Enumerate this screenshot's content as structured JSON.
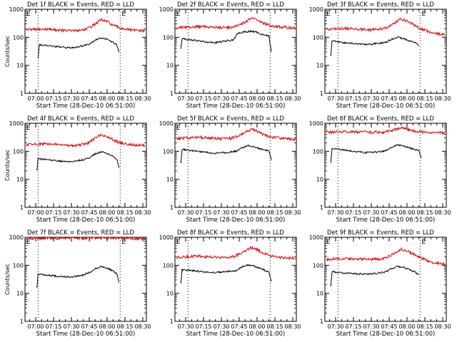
{
  "chart_data": [
    {
      "type": "line",
      "title": "Det 1f BLACK = Events, RED = LLD",
      "xlabel": "Start Time (28-Dec-10 06:51:00)",
      "ylabel": "Counts/sec",
      "x_ticks": [
        "07:00",
        "07:15",
        "07:30",
        "07:45",
        "08:00",
        "08:15",
        "08:30"
      ],
      "xlim": [
        "06:51",
        "08:33"
      ],
      "y_log": true,
      "ylim": [
        1,
        1000
      ],
      "y_ticks": [
        "1",
        "10",
        "100",
        "1000"
      ],
      "dotted_lines": [
        "07:02",
        "08:11"
      ],
      "marker_labels": [
        "E",
        "E"
      ],
      "series": [
        {
          "color": "#000000",
          "x": [
            "07:02",
            "07:03",
            "07:10",
            "07:20",
            "07:30",
            "07:40",
            "07:45",
            "07:50",
            "07:55",
            "08:00",
            "08:05",
            "08:08",
            "08:10"
          ],
          "y": [
            18,
            55,
            50,
            45,
            42,
            50,
            58,
            80,
            95,
            85,
            65,
            55,
            28
          ]
        },
        {
          "color": "#dd0000",
          "x": [
            "06:52",
            "07:00",
            "07:10",
            "07:20",
            "07:30",
            "07:40",
            "07:45",
            "07:50",
            "07:55",
            "08:00",
            "08:05",
            "08:10",
            "08:20",
            "08:32"
          ],
          "y": [
            180,
            190,
            195,
            180,
            170,
            185,
            220,
            300,
            420,
            360,
            270,
            220,
            180,
            170
          ]
        }
      ]
    },
    {
      "type": "line",
      "title": "Det 2f BLACK = Events, RED = LLD",
      "xlabel": "Start Time (28-Dec-10 06:51:00)",
      "ylabel": "",
      "x_ticks": [
        "07:30",
        "07:15",
        "07:30",
        "07:45",
        "08:00",
        "08:15",
        "08:30"
      ],
      "xlim": [
        "06:51",
        "08:33"
      ],
      "y_log": true,
      "ylim": [
        1,
        1000
      ],
      "y_ticks": [
        "1",
        "10",
        "100",
        "1000"
      ],
      "dotted_lines": [
        "07:02",
        "08:11"
      ],
      "marker_labels": [
        "E"
      ],
      "series": [
        {
          "color": "#000000",
          "x": [
            "06:56",
            "06:57",
            "07:05",
            "07:15",
            "07:25",
            "07:35",
            "07:40",
            "07:44",
            "07:50",
            "07:55",
            "08:00",
            "08:05",
            "08:10",
            "08:12"
          ],
          "y": [
            40,
            90,
            80,
            70,
            65,
            75,
            80,
            140,
            155,
            165,
            150,
            125,
            110,
            30
          ]
        },
        {
          "color": "#dd0000",
          "x": [
            "06:52",
            "07:00",
            "07:10",
            "07:20",
            "07:30",
            "07:40",
            "07:45",
            "07:50",
            "07:55",
            "08:00",
            "08:05",
            "08:10",
            "08:20",
            "08:32"
          ],
          "y": [
            220,
            230,
            240,
            235,
            220,
            230,
            270,
            350,
            480,
            420,
            320,
            270,
            230,
            210
          ]
        }
      ]
    },
    {
      "type": "line",
      "title": "Det 3f BLACK = Events, RED = LLD",
      "xlabel": "Start Time (28-Dec-10 06:51:00)",
      "ylabel": "",
      "x_ticks": [
        "07:30",
        "07:15",
        "07:30",
        "07:45",
        "08:00",
        "08:15",
        "08:30"
      ],
      "xlim": [
        "06:51",
        "08:33"
      ],
      "y_log": true,
      "ylim": [
        1,
        1000
      ],
      "y_ticks": [
        "1",
        "10",
        "100",
        "1000"
      ],
      "dotted_lines": [
        "07:02",
        "08:11"
      ],
      "marker_labels": [
        "E",
        "E"
      ],
      "series": [
        {
          "color": "#000000",
          "x": [
            "06:56",
            "06:57",
            "07:05",
            "07:15",
            "07:25",
            "07:35",
            "07:42",
            "07:47",
            "07:52",
            "07:57",
            "08:02",
            "08:07",
            "08:10"
          ],
          "y": [
            22,
            75,
            65,
            60,
            55,
            60,
            65,
            85,
            100,
            90,
            75,
            65,
            50
          ]
        },
        {
          "color": "#dd0000",
          "x": [
            "06:52",
            "07:00",
            "07:10",
            "07:20",
            "07:30",
            "07:40",
            "07:45",
            "07:50",
            "07:55",
            "08:00",
            "08:05",
            "08:10",
            "08:20",
            "08:32"
          ],
          "y": [
            190,
            200,
            205,
            195,
            185,
            200,
            240,
            330,
            450,
            380,
            290,
            220,
            150,
            120
          ]
        }
      ]
    },
    {
      "type": "line",
      "title": "Det 4f BLACK = Events, RED = LLD",
      "xlabel": "Start Time (28-Dec-10 06:51:00)",
      "ylabel": "Counts/sec",
      "x_ticks": [
        "07:00",
        "07:15",
        "07:30",
        "07:45",
        "08:00",
        "08:15",
        "08:30"
      ],
      "xlim": [
        "06:51",
        "08:33"
      ],
      "y_log": true,
      "ylim": [
        1,
        1000
      ],
      "y_ticks": [
        "1",
        "10",
        "100",
        "1000"
      ],
      "dotted_lines": [
        "07:02",
        "08:11"
      ],
      "marker_labels": [
        "E"
      ],
      "series": [
        {
          "color": "#000000",
          "x": [
            "07:01",
            "07:02",
            "07:10",
            "07:20",
            "07:30",
            "07:40",
            "07:45",
            "07:50",
            "07:55",
            "08:00",
            "08:05",
            "08:08",
            "08:10"
          ],
          "y": [
            20,
            55,
            50,
            45,
            42,
            50,
            58,
            80,
            95,
            85,
            65,
            55,
            28
          ]
        },
        {
          "color": "#dd0000",
          "x": [
            "06:52",
            "07:00",
            "07:10",
            "07:20",
            "07:30",
            "07:40",
            "07:45",
            "07:50",
            "07:55",
            "08:00",
            "08:05",
            "08:10",
            "08:20",
            "08:32"
          ],
          "y": [
            170,
            180,
            185,
            170,
            160,
            175,
            210,
            290,
            400,
            340,
            260,
            210,
            170,
            160
          ]
        }
      ]
    },
    {
      "type": "line",
      "title": "Det 5f BLACK = Events, RED = LLD",
      "xlabel": "Start Time (28-Dec-10 06:51:00)",
      "ylabel": "",
      "x_ticks": [
        "07:30",
        "07:15",
        "07:30",
        "07:45",
        "08:00",
        "08:15",
        "08:30"
      ],
      "xlim": [
        "06:51",
        "08:33"
      ],
      "y_log": true,
      "ylim": [
        1,
        1000
      ],
      "y_ticks": [
        "1",
        "10",
        "100",
        "1000"
      ],
      "dotted_lines": [
        "07:02",
        "08:11"
      ],
      "marker_labels": [
        "E"
      ],
      "series": [
        {
          "color": "#000000",
          "x": [
            "06:56",
            "06:57",
            "07:05",
            "07:15",
            "07:25",
            "07:35",
            "07:42",
            "07:47",
            "07:52",
            "07:57",
            "08:02",
            "08:07",
            "08:10",
            "08:12"
          ],
          "y": [
            35,
            120,
            105,
            95,
            85,
            90,
            100,
            130,
            160,
            150,
            125,
            110,
            100,
            50
          ]
        },
        {
          "color": "#dd0000",
          "x": [
            "06:52",
            "07:00",
            "07:10",
            "07:20",
            "07:30",
            "07:40",
            "07:45",
            "07:50",
            "07:55",
            "08:00",
            "08:05",
            "08:10",
            "08:20",
            "08:32"
          ],
          "y": [
            290,
            300,
            320,
            300,
            280,
            300,
            360,
            480,
            600,
            520,
            400,
            330,
            290,
            270
          ]
        }
      ]
    },
    {
      "type": "line",
      "title": "Det 6f BLACK = Events, RED = LLD",
      "xlabel": "Start Time (28-Dec-10 06:51:00)",
      "ylabel": "",
      "x_ticks": [
        "07:30",
        "07:15",
        "07:30",
        "07:45",
        "08:00",
        "08:15",
        "08:30"
      ],
      "xlim": [
        "06:51",
        "08:33"
      ],
      "y_log": true,
      "ylim": [
        1,
        1000
      ],
      "y_ticks": [
        "1",
        "10",
        "100",
        "1000"
      ],
      "dotted_lines": [
        "07:02",
        "08:11"
      ],
      "marker_labels": [],
      "series": [
        {
          "color": "#000000",
          "x": [
            "06:56",
            "06:57",
            "07:05",
            "07:15",
            "07:25",
            "07:35",
            "07:42",
            "07:47",
            "07:52",
            "07:57",
            "08:02",
            "08:07",
            "08:10",
            "08:12"
          ],
          "y": [
            40,
            130,
            115,
            100,
            90,
            95,
            105,
            140,
            170,
            155,
            130,
            115,
            105,
            60
          ]
        },
        {
          "color": "#dd0000",
          "x": [
            "06:52",
            "07:00",
            "07:10",
            "07:20",
            "07:30",
            "07:40",
            "07:45",
            "07:50",
            "07:55",
            "08:00",
            "08:05",
            "08:10",
            "08:20",
            "08:32"
          ],
          "y": [
            480,
            490,
            500,
            490,
            470,
            480,
            520,
            600,
            700,
            620,
            540,
            500,
            470,
            450
          ]
        }
      ]
    },
    {
      "type": "line",
      "title": "Det 7f BLACK = Events, RED = LLD",
      "xlabel": "Start Time (28-Dec-10 06:51:00)",
      "ylabel": "Counts/sec",
      "x_ticks": [
        "07:00",
        "07:15",
        "07:30",
        "07:45",
        "08:00",
        "08:15",
        "08:30"
      ],
      "xlim": [
        "06:51",
        "08:33"
      ],
      "y_log": true,
      "ylim": [
        1,
        1000
      ],
      "y_ticks": [
        "1",
        "10",
        "100",
        "1000"
      ],
      "dotted_lines": [
        "07:02",
        "08:11"
      ],
      "marker_labels": [
        "E",
        "E"
      ],
      "series": [
        {
          "color": "#000000",
          "x": [
            "07:01",
            "07:02",
            "07:10",
            "07:20",
            "07:30",
            "07:40",
            "07:45",
            "07:50",
            "07:55",
            "08:00",
            "08:05",
            "08:08",
            "08:10"
          ],
          "y": [
            15,
            50,
            45,
            40,
            38,
            45,
            55,
            75,
            90,
            80,
            62,
            50,
            25
          ]
        },
        {
          "color": "#dd0000",
          "x": [
            "06:52",
            "07:00",
            "07:10",
            "07:20",
            "07:30",
            "07:40",
            "07:50",
            "08:00",
            "08:10",
            "08:20",
            "08:32"
          ],
          "y": [
            950,
            900,
            930,
            920,
            940,
            910,
            950,
            960,
            940,
            920,
            900
          ]
        }
      ]
    },
    {
      "type": "line",
      "title": "Det 8f BLACK = Events, RED = LLD",
      "xlabel": "Start Time (28-Dec-10 06:51:00)",
      "ylabel": "",
      "x_ticks": [
        "07:30",
        "07:15",
        "07:30",
        "07:45",
        "08:00",
        "08:15",
        "08:30"
      ],
      "xlim": [
        "06:51",
        "08:33"
      ],
      "y_log": true,
      "ylim": [
        1,
        1000
      ],
      "y_ticks": [
        "1",
        "10",
        "100",
        "1000"
      ],
      "dotted_lines": [
        "07:02",
        "08:11"
      ],
      "marker_labels": [
        "E"
      ],
      "series": [
        {
          "color": "#000000",
          "x": [
            "06:56",
            "06:57",
            "07:05",
            "07:15",
            "07:25",
            "07:35",
            "07:42",
            "07:47",
            "07:52",
            "07:57",
            "08:02",
            "08:07",
            "08:10",
            "08:12"
          ],
          "y": [
            22,
            70,
            65,
            58,
            55,
            60,
            65,
            85,
            100,
            95,
            80,
            65,
            55,
            25
          ]
        },
        {
          "color": "#dd0000",
          "x": [
            "06:52",
            "07:00",
            "07:10",
            "07:20",
            "07:30",
            "07:40",
            "07:45",
            "07:50",
            "07:55",
            "08:00",
            "08:05",
            "08:10",
            "08:20",
            "08:32"
          ],
          "y": [
            190,
            200,
            210,
            200,
            190,
            205,
            250,
            330,
            420,
            370,
            280,
            230,
            190,
            180
          ]
        }
      ]
    },
    {
      "type": "line",
      "title": "Det 9f BLACK = Events, RED = LLD",
      "xlabel": "Start Time (28-Dec-10 06:51:00)",
      "ylabel": "",
      "x_ticks": [
        "07:30",
        "07:15",
        "07:30",
        "07:45",
        "08:00",
        "08:15",
        "08:30"
      ],
      "xlim": [
        "06:51",
        "08:33"
      ],
      "y_log": true,
      "ylim": [
        1,
        1000
      ],
      "y_ticks": [
        "1",
        "10",
        "100",
        "1000"
      ],
      "dotted_lines": [
        "07:02",
        "08:11"
      ],
      "marker_labels": [
        "E",
        "E"
      ],
      "series": [
        {
          "color": "#000000",
          "x": [
            "06:56",
            "06:57",
            "07:05",
            "07:15",
            "07:25",
            "07:35",
            "07:42",
            "07:47",
            "07:52",
            "07:57",
            "08:02",
            "08:07",
            "08:10"
          ],
          "y": [
            18,
            60,
            55,
            50,
            48,
            52,
            58,
            75,
            90,
            85,
            70,
            55,
            45
          ]
        },
        {
          "color": "#dd0000",
          "x": [
            "06:52",
            "07:00",
            "07:10",
            "07:20",
            "07:30",
            "07:40",
            "07:45",
            "07:50",
            "07:55",
            "08:00",
            "08:05",
            "08:10",
            "08:20",
            "08:32"
          ],
          "y": [
            160,
            170,
            175,
            165,
            160,
            170,
            210,
            280,
            380,
            330,
            250,
            200,
            130,
            110
          ]
        }
      ]
    }
  ]
}
